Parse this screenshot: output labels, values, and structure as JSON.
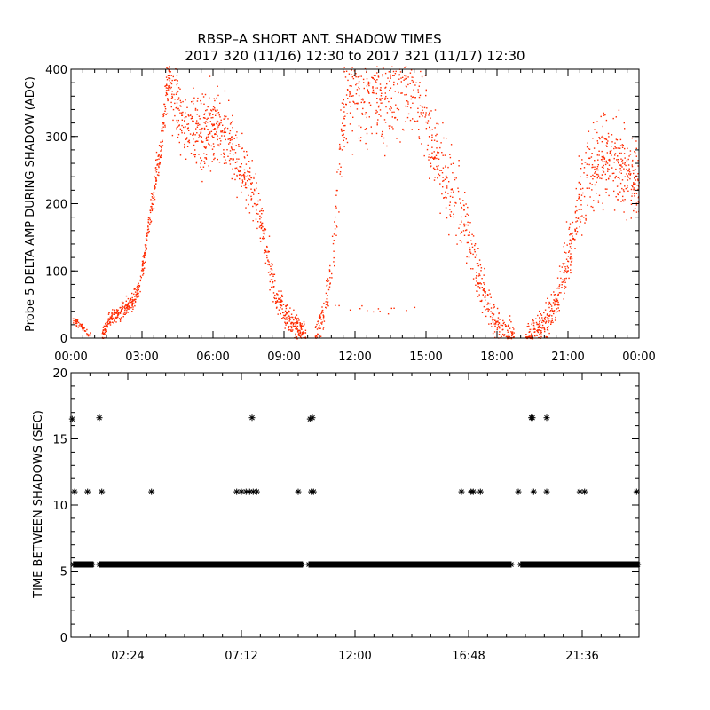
{
  "title_line1": "RBSP–A SHORT ANT. SHADOW TIMES",
  "title_line2": "2017 320 (11/16) 12:30 to 2017 321 (11/17) 12:30",
  "colors": {
    "upper_points": "#ff2a00",
    "lower_points": "#000000",
    "axes": "#000000"
  },
  "chart_data": [
    {
      "type": "scatter",
      "id": "upper",
      "ylabel": "Probe 5 DELTA AMP DURING SHADOW (ADC)",
      "xlabel": "",
      "xlim_hours": [
        0,
        24
      ],
      "ylim": [
        0,
        400
      ],
      "x_tick_hours": [
        0,
        3,
        6,
        9,
        12,
        15,
        18,
        21,
        24
      ],
      "x_tick_labels": [
        "00:00",
        "03:00",
        "06:00",
        "09:00",
        "12:00",
        "15:00",
        "18:00",
        "21:00",
        "00:00"
      ],
      "y_ticks": [
        0,
        100,
        200,
        300,
        400
      ],
      "y_tick_labels": [
        "0",
        "100",
        "200",
        "300",
        "400"
      ],
      "grid": false,
      "envelope": {
        "description": "approximate center of point cloud (hour, ADC)",
        "segments": [
          {
            "points": [
              [
                0.0,
                30
              ],
              [
                0.4,
                18
              ],
              [
                0.8,
                5
              ]
            ],
            "spread": 6,
            "density": 50
          },
          {
            "points": [
              [
                1.3,
                5
              ],
              [
                1.6,
                28
              ],
              [
                2.0,
                38
              ],
              [
                2.6,
                55
              ],
              [
                2.9,
                80
              ],
              [
                3.1,
                130
              ],
              [
                3.3,
                175
              ],
              [
                3.5,
                230
              ],
              [
                3.8,
                290
              ],
              [
                4.0,
                370
              ],
              [
                4.2,
                400
              ]
            ],
            "spread": 12,
            "density": 460
          },
          {
            "points": [
              [
                4.2,
                380
              ],
              [
                4.6,
                330
              ],
              [
                5.0,
                310
              ],
              [
                5.5,
                300
              ],
              [
                6.0,
                320
              ],
              [
                6.4,
                310
              ],
              [
                6.8,
                280
              ],
              [
                7.2,
                250
              ],
              [
                7.6,
                225
              ],
              [
                8.0,
                180
              ],
              [
                8.3,
                120
              ],
              [
                8.6,
                70
              ],
              [
                9.0,
                40
              ],
              [
                9.5,
                18
              ],
              [
                9.9,
                5
              ]
            ],
            "spread": 22,
            "density": 760
          },
          {
            "points": [
              [
                10.3,
                5
              ],
              [
                10.6,
                30
              ],
              [
                10.9,
                80
              ],
              [
                11.1,
                150
              ],
              [
                11.3,
                240
              ],
              [
                11.5,
                330
              ],
              [
                11.7,
                370
              ],
              [
                12.2,
                375
              ],
              [
                12.8,
                370
              ],
              [
                13.5,
                370
              ],
              [
                14.2,
                380
              ],
              [
                14.8,
                360
              ],
              [
                15.2,
                300
              ],
              [
                15.6,
                250
              ],
              [
                16.1,
                210
              ],
              [
                16.6,
                180
              ],
              [
                17.0,
                120
              ],
              [
                17.4,
                70
              ],
              [
                17.8,
                30
              ],
              [
                18.3,
                12
              ],
              [
                18.7,
                3
              ]
            ],
            "spread": 28,
            "density": 900
          },
          {
            "points": [
              [
                19.2,
                3
              ],
              [
                19.6,
                10
              ],
              [
                20.1,
                25
              ],
              [
                20.5,
                55
              ],
              [
                20.8,
                95
              ],
              [
                21.1,
                140
              ],
              [
                21.4,
                200
              ],
              [
                21.8,
                240
              ],
              [
                22.3,
                270
              ],
              [
                22.8,
                265
              ],
              [
                23.3,
                250
              ],
              [
                23.7,
                245
              ],
              [
                24.0,
                230
              ]
            ],
            "spread": 30,
            "density": 650
          }
        ],
        "sparse_low_band": {
          "hours": [
            11.0,
            15.0
          ],
          "value": 45
        }
      }
    },
    {
      "type": "scatter",
      "id": "lower",
      "ylabel": "TIME BETWEEN SHADOWS (SEC)",
      "xlabel": "",
      "xlim_hours": [
        0,
        24
      ],
      "ylim": [
        0,
        20
      ],
      "x_tick_hours": [
        2.4,
        7.2,
        12.0,
        16.8,
        21.6
      ],
      "x_tick_labels": [
        "02:24",
        "07:12",
        "12:00",
        "16:48",
        "21:36"
      ],
      "y_ticks": [
        0,
        5,
        10,
        15,
        20
      ],
      "y_tick_labels": [
        "0",
        "5",
        "10",
        "15",
        "20"
      ],
      "grid": false,
      "baseline_value": 5.5,
      "baseline_runs_hours": [
        [
          0.1,
          0.95
        ],
        [
          1.2,
          9.8
        ],
        [
          10.05,
          18.6
        ],
        [
          19.0,
          24.0
        ]
      ],
      "outliers": [
        [
          0.05,
          16.5
        ],
        [
          0.15,
          11.0
        ],
        [
          0.7,
          11.0
        ],
        [
          1.2,
          16.6
        ],
        [
          1.3,
          11.0
        ],
        [
          3.4,
          11.0
        ],
        [
          7.0,
          11.0
        ],
        [
          7.2,
          11.0
        ],
        [
          7.4,
          11.0
        ],
        [
          7.55,
          11.0
        ],
        [
          7.65,
          16.6
        ],
        [
          7.7,
          11.0
        ],
        [
          7.85,
          11.0
        ],
        [
          9.6,
          11.0
        ],
        [
          10.1,
          16.5
        ],
        [
          10.15,
          11.0
        ],
        [
          10.2,
          16.6
        ],
        [
          10.25,
          11.0
        ],
        [
          16.5,
          11.0
        ],
        [
          16.9,
          11.0
        ],
        [
          17.0,
          11.0
        ],
        [
          17.3,
          11.0
        ],
        [
          18.9,
          11.0
        ],
        [
          19.45,
          16.6
        ],
        [
          19.5,
          16.6
        ],
        [
          19.55,
          11.0
        ],
        [
          20.1,
          16.6
        ],
        [
          20.1,
          11.0
        ],
        [
          21.5,
          11.0
        ],
        [
          21.7,
          11.0
        ],
        [
          23.9,
          11.0
        ]
      ]
    }
  ]
}
